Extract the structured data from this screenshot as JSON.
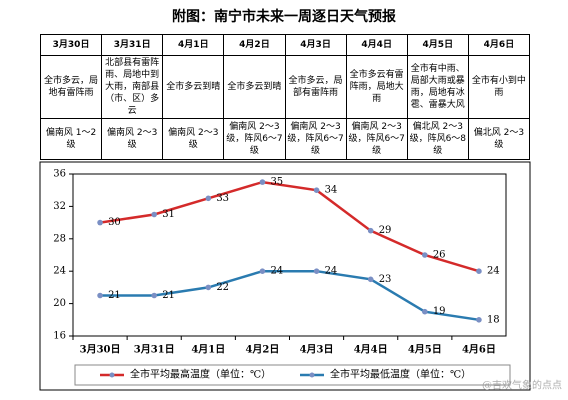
{
  "title": "附图：南宁市未来一周逐日天气预报",
  "table": {
    "rows": [
      [
        "3月30日",
        "3月31日",
        "4月1日",
        "4月2日",
        "4月3日",
        "4月4日",
        "4月5日",
        "4月6日"
      ],
      [
        "全市多云，局地有雷阵雨",
        "北部县有雷阵雨、局地中到大雨，南部县（市、区）多云",
        "全市多云到晴",
        "全市多云到晴",
        "全市多云，局部有雷阵雨",
        "全市多云有雷阵雨，局地大雨",
        "全市有中雨、局部大雨或暴雨，局地有冰雹、雷暴大风",
        "全市有小到中雨"
      ],
      [
        "偏南风 1～2级",
        "偏南风 2～3级",
        "偏南风 2～3级",
        "偏南风 2～3级，阵风6～7级",
        "偏南风 2～3级，阵风6～7级",
        "偏南风 2～3级，阵风6～7级",
        "偏北风 2～3级，阵风6～8级",
        "偏北风 2～3级"
      ]
    ]
  },
  "chart_data": {
    "type": "line",
    "categories": [
      "3月30日",
      "3月31日",
      "4月1日",
      "4月2日",
      "4月3日",
      "4月4日",
      "4月5日",
      "4月6日"
    ],
    "series": [
      {
        "name": "全市平均最高温度（单位：℃）",
        "color": "#d42a2a",
        "values": [
          30,
          31,
          33,
          35,
          34,
          29,
          26,
          24
        ]
      },
      {
        "name": "全市平均最低温度（单位：℃）",
        "color": "#2a7bb0",
        "values": [
          21,
          21,
          22,
          24,
          24,
          23,
          19,
          18
        ]
      }
    ],
    "ylim": [
      16,
      36
    ],
    "yticks": [
      16,
      20,
      24,
      28,
      32,
      36
    ],
    "legend": "bottom"
  },
  "watermark": "@吉欢气象的点点"
}
